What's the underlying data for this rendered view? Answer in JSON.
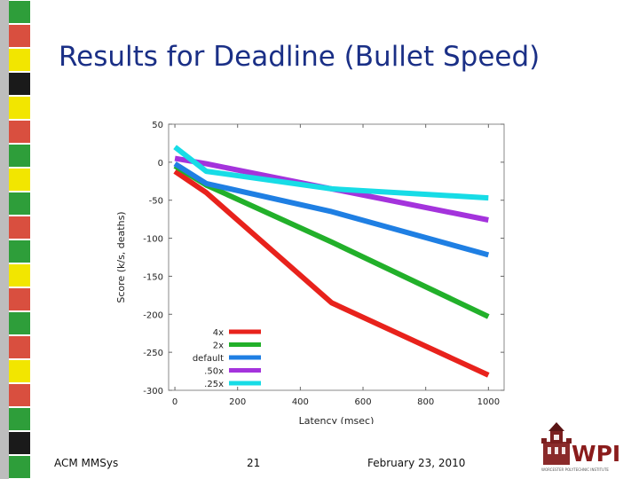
{
  "slide": {
    "title": "Results for Deadline (Bullet Speed)",
    "footer_left": "ACM MMSys",
    "page_number": "21",
    "date": "February 23, 2010",
    "logo_text": "WPI",
    "logo_subtext": "WORCESTER POLYTECHNIC INSTITUTE"
  },
  "side_strip_colors": [
    "#2e9e3a",
    "#d94f3f",
    "#f2e600",
    "#1a1a1a",
    "#f2e600",
    "#d94f3f",
    "#2e9e3a",
    "#f2e600",
    "#2e9e3a",
    "#d94f3f",
    "#2e9e3a",
    "#f2e600",
    "#d94f3f",
    "#2e9e3a",
    "#d94f3f",
    "#f2e600",
    "#d94f3f",
    "#2e9e3a",
    "#1a1a1a",
    "#2e9e3a"
  ],
  "chart_data": {
    "type": "line",
    "xlabel": "Latency (msec)",
    "ylabel": "Score (k/s, deaths)",
    "xlim": [
      -20,
      1050
    ],
    "ylim": [
      -300,
      50
    ],
    "xticks": [
      "0",
      "200",
      "400",
      "600",
      "800",
      "1000"
    ],
    "yticks": [
      "50",
      "0",
      "-50",
      "-100",
      "-150",
      "-200",
      "-250",
      "-300"
    ],
    "grid": false,
    "legend_position": "bottom-left",
    "series": [
      {
        "name": "4x",
        "color": "#e8221c",
        "x": [
          0,
          100,
          500,
          1000
        ],
        "y": [
          -12,
          -40,
          -185,
          -280
        ]
      },
      {
        "name": "2x",
        "color": "#22b02a",
        "x": [
          0,
          100,
          500,
          1000
        ],
        "y": [
          -5,
          -30,
          -105,
          -203
        ]
      },
      {
        "name": "default",
        "color": "#1f7fe3",
        "x": [
          0,
          100,
          500,
          1000
        ],
        "y": [
          -2,
          -28,
          -65,
          -122
        ]
      },
      {
        "name": ".50x",
        "color": "#a433dc",
        "x": [
          0,
          100,
          500,
          1000
        ],
        "y": [
          5,
          -2,
          -35,
          -76
        ]
      },
      {
        "name": ".25x",
        "color": "#17dce6",
        "x": [
          0,
          100,
          500,
          1000
        ],
        "y": [
          20,
          -12,
          -35,
          -47
        ]
      }
    ]
  }
}
